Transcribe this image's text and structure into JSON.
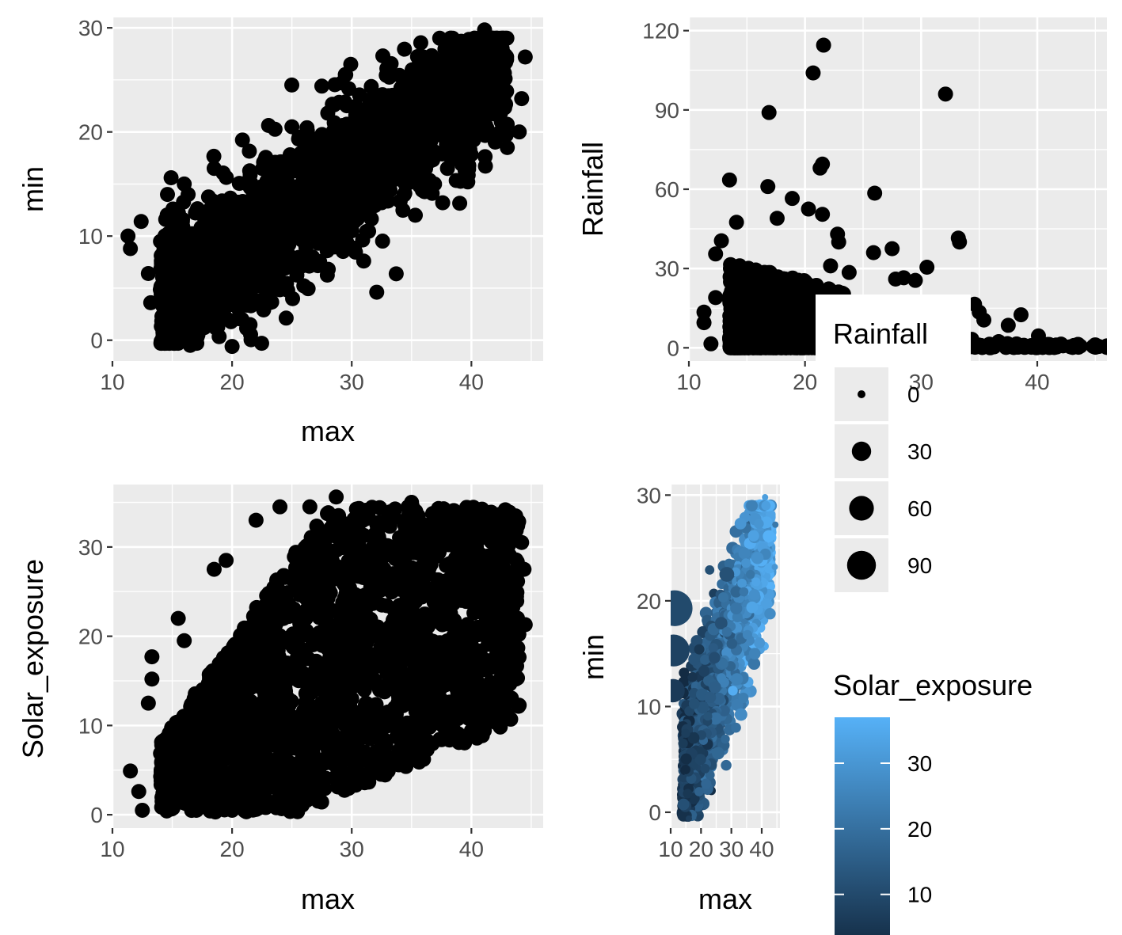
{
  "colors": {
    "panel_bg": "#ebebeb",
    "grid": "#ffffff",
    "point": "#000000",
    "gradient_low": "#132b43",
    "gradient_high": "#56b1f7",
    "tick_text": "#4d4d4d"
  },
  "chart_data": [
    {
      "id": "p1",
      "type": "scatter",
      "title": "",
      "xlabel": "max",
      "ylabel": "min",
      "xlim": [
        10,
        46
      ],
      "ylim": [
        -2,
        31
      ],
      "xticks": [
        10,
        20,
        30,
        40
      ],
      "yticks": [
        0,
        10,
        20,
        30
      ],
      "grid": true,
      "trend": {
        "intercept": -7,
        "slope": 0.78
      },
      "points": [
        {
          "x": 11.3,
          "y": 10.0
        },
        {
          "x": 11.5,
          "y": 8.8
        },
        {
          "x": 12.4,
          "y": 11.4
        },
        {
          "x": 13.0,
          "y": 6.4
        },
        {
          "x": 13.2,
          "y": 3.6
        },
        {
          "x": 14.2,
          "y": 0.2
        },
        {
          "x": 14.6,
          "y": 14.0
        },
        {
          "x": 16.5,
          "y": -0.5
        },
        {
          "x": 20.0,
          "y": -0.6
        },
        {
          "x": 21.5,
          "y": 1.5
        },
        {
          "x": 25.0,
          "y": 20.5
        },
        {
          "x": 27.5,
          "y": 24.4
        },
        {
          "x": 29.5,
          "y": 25.5
        },
        {
          "x": 32.6,
          "y": 27.3
        },
        {
          "x": 34.5,
          "y": 22.5
        },
        {
          "x": 36.0,
          "y": 27.2
        },
        {
          "x": 38.0,
          "y": 25.5
        },
        {
          "x": 41.1,
          "y": 29.8
        },
        {
          "x": 42.0,
          "y": 27.0
        },
        {
          "x": 42.6,
          "y": 25.5
        },
        {
          "x": 44.5,
          "y": 27.2
        },
        {
          "x": 44.2,
          "y": 23.2
        },
        {
          "x": 44.0,
          "y": 20.0
        },
        {
          "x": 43.0,
          "y": 18.5
        },
        {
          "x": 42.5,
          "y": 22.5
        },
        {
          "x": 39.7,
          "y": 15.2
        },
        {
          "x": 37.6,
          "y": 13.2
        },
        {
          "x": 31.0,
          "y": 7.6
        },
        {
          "x": 30.0,
          "y": 10.5
        },
        {
          "x": 24.0,
          "y": 15.5
        },
        {
          "x": 18.5,
          "y": 16.5
        },
        {
          "x": 16.0,
          "y": 15.0
        }
      ]
    },
    {
      "id": "p2",
      "type": "scatter",
      "title": "",
      "xlabel": "",
      "ylabel": "Rainfall",
      "xlim": [
        10,
        46
      ],
      "ylim": [
        -5,
        125
      ],
      "xticks": [
        10,
        20,
        30,
        40
      ],
      "yticks": [
        0,
        30,
        60,
        90,
        120
      ],
      "grid": true,
      "points": [
        {
          "x": 21.6,
          "y": 114.5
        },
        {
          "x": 20.7,
          "y": 104.0
        },
        {
          "x": 32.1,
          "y": 96.0
        },
        {
          "x": 16.9,
          "y": 89.0
        },
        {
          "x": 21.5,
          "y": 69.5
        },
        {
          "x": 21.3,
          "y": 68.0
        },
        {
          "x": 13.5,
          "y": 63.5
        },
        {
          "x": 16.8,
          "y": 61.0
        },
        {
          "x": 26.0,
          "y": 58.5
        },
        {
          "x": 18.9,
          "y": 56.5
        },
        {
          "x": 21.5,
          "y": 50.5
        },
        {
          "x": 20.3,
          "y": 52.5
        },
        {
          "x": 14.1,
          "y": 47.5
        },
        {
          "x": 17.6,
          "y": 49.0
        },
        {
          "x": 33.2,
          "y": 41.5
        },
        {
          "x": 33.3,
          "y": 40.0
        },
        {
          "x": 22.8,
          "y": 43.0
        },
        {
          "x": 22.9,
          "y": 40.0
        },
        {
          "x": 25.9,
          "y": 36.0
        },
        {
          "x": 27.5,
          "y": 37.5
        },
        {
          "x": 30.5,
          "y": 30.5
        },
        {
          "x": 28.5,
          "y": 26.5
        },
        {
          "x": 29.5,
          "y": 25.5
        },
        {
          "x": 27.8,
          "y": 26.0
        },
        {
          "x": 23.8,
          "y": 28.5
        },
        {
          "x": 22.2,
          "y": 31.0
        },
        {
          "x": 12.8,
          "y": 40.5
        },
        {
          "x": 12.3,
          "y": 35.5
        },
        {
          "x": 11.3,
          "y": 13.5
        },
        {
          "x": 11.3,
          "y": 9.5
        },
        {
          "x": 11.9,
          "y": 1.5
        },
        {
          "x": 12.3,
          "y": 19.0
        },
        {
          "x": 34.6,
          "y": 16.5
        },
        {
          "x": 35.0,
          "y": 13.5
        },
        {
          "x": 35.4,
          "y": 10.5
        },
        {
          "x": 38.6,
          "y": 12.5
        },
        {
          "x": 37.5,
          "y": 8.5
        },
        {
          "x": 40.1,
          "y": 4.5
        },
        {
          "x": 43.5,
          "y": 1.0
        },
        {
          "x": 45.3,
          "y": 0.5
        }
      ]
    },
    {
      "id": "p3",
      "type": "scatter",
      "title": "",
      "xlabel": "max",
      "ylabel": "Solar_exposure",
      "xlim": [
        10,
        46
      ],
      "ylim": [
        -1.5,
        37
      ],
      "xticks": [
        10,
        20,
        30,
        40
      ],
      "yticks": [
        0,
        10,
        20,
        30
      ],
      "grid": true,
      "points": [
        {
          "x": 11.5,
          "y": 4.9
        },
        {
          "x": 12.2,
          "y": 2.6
        },
        {
          "x": 12.5,
          "y": 0.5
        },
        {
          "x": 13.0,
          "y": 12.5
        },
        {
          "x": 13.3,
          "y": 15.2
        },
        {
          "x": 13.3,
          "y": 17.7
        },
        {
          "x": 14.5,
          "y": 2.0
        },
        {
          "x": 16.0,
          "y": 19.5
        },
        {
          "x": 15.5,
          "y": 22.0
        },
        {
          "x": 18.5,
          "y": 27.5
        },
        {
          "x": 19.5,
          "y": 28.5
        },
        {
          "x": 22.0,
          "y": 33.0
        },
        {
          "x": 24.0,
          "y": 34.5
        },
        {
          "x": 26.5,
          "y": 34.5
        },
        {
          "x": 28.7,
          "y": 35.6
        },
        {
          "x": 31.0,
          "y": 34.0
        },
        {
          "x": 35.0,
          "y": 35.0
        },
        {
          "x": 38.0,
          "y": 33.5
        },
        {
          "x": 41.5,
          "y": 32.5
        },
        {
          "x": 43.0,
          "y": 31.0
        },
        {
          "x": 44.2,
          "y": 30.5
        },
        {
          "x": 44.4,
          "y": 27.5
        },
        {
          "x": 44.5,
          "y": 21.3
        },
        {
          "x": 42.5,
          "y": 23.5
        },
        {
          "x": 42.4,
          "y": 20.5
        },
        {
          "x": 40.0,
          "y": 19.0
        },
        {
          "x": 37.5,
          "y": 18.5
        },
        {
          "x": 35.5,
          "y": 16.5
        },
        {
          "x": 33.5,
          "y": 15.5
        },
        {
          "x": 31.2,
          "y": 12.5
        },
        {
          "x": 30.0,
          "y": 13.0
        },
        {
          "x": 27.0,
          "y": 11.0
        },
        {
          "x": 26.5,
          "y": 9.0
        },
        {
          "x": 27.8,
          "y": 5.8
        },
        {
          "x": 28.3,
          "y": 5.8
        },
        {
          "x": 25.5,
          "y": 5.0
        },
        {
          "x": 22.5,
          "y": 1.0
        },
        {
          "x": 20.0,
          "y": 0.5
        },
        {
          "x": 17.0,
          "y": 0.5
        },
        {
          "x": 15.0,
          "y": 1.0
        }
      ]
    },
    {
      "id": "p4",
      "type": "scatter",
      "title": "",
      "xlabel": "max",
      "ylabel": "min",
      "xlim": [
        10,
        46
      ],
      "ylim": [
        -1.5,
        31
      ],
      "xticks": [
        10,
        20,
        30,
        40
      ],
      "yticks": [
        0,
        10,
        20,
        30
      ],
      "grid": true,
      "size_by": "Rainfall",
      "color_by": "Solar_exposure",
      "points": [
        {
          "x": 11.3,
          "y": 19.3,
          "size": 60,
          "color": 10
        },
        {
          "x": 11.0,
          "y": 15.3,
          "size": 45,
          "color": 8
        },
        {
          "x": 10.8,
          "y": 11.5,
          "size": 20,
          "color": 6
        },
        {
          "x": 41.1,
          "y": 29.8,
          "size": 0,
          "color": 32
        },
        {
          "x": 33.0,
          "y": 27.3,
          "size": 2,
          "color": 30
        },
        {
          "x": 44.5,
          "y": 27.2,
          "size": 0,
          "color": 22
        },
        {
          "x": 44.3,
          "y": 23.2,
          "size": 0,
          "color": 30
        },
        {
          "x": 37.7,
          "y": 15.0,
          "size": 2,
          "color": 25
        },
        {
          "x": 31.5,
          "y": 8.0,
          "size": 1,
          "color": 20
        },
        {
          "x": 19.5,
          "y": -0.5,
          "size": 0,
          "color": 8
        },
        {
          "x": 16.0,
          "y": -0.6,
          "size": 0,
          "color": 7
        },
        {
          "x": 28.5,
          "y": 22.5,
          "size": 5,
          "color": 12
        }
      ]
    }
  ],
  "legend_size": {
    "title": "Rainfall",
    "values": [
      0,
      30,
      60,
      90
    ],
    "labels": [
      "0",
      "30",
      "60",
      "90"
    ]
  },
  "legend_color": {
    "title": "Solar_exposure",
    "range": [
      2,
      37
    ],
    "breaks": [
      10,
      20,
      30
    ],
    "labels": [
      "10",
      "20",
      "30"
    ]
  }
}
